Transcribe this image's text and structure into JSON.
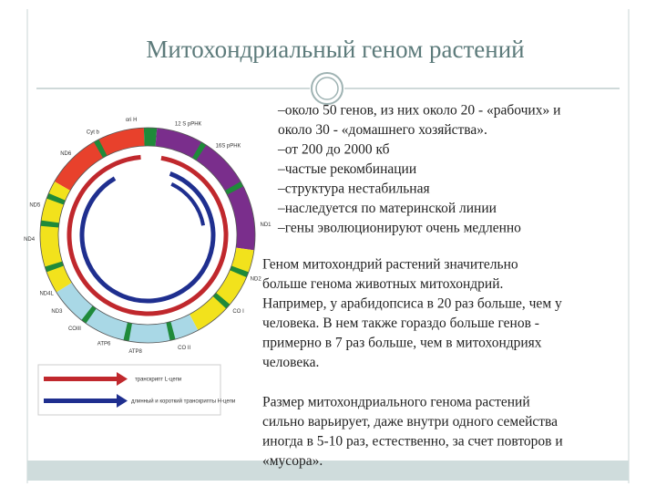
{
  "header": {
    "title": "Митохондриальный геном растений"
  },
  "bullets": [
    "–около 50 генов, из них около 20 - «рабочих» и",
    "около 30 - «домашнего хозяйства».",
    "–от 200 до 2000 кб",
    "–частые рекомбинации",
    "–структура нестабильная",
    "–наследуется по материнской линии",
    "–гены эволюционируют очень медленно"
  ],
  "paragraphs": [
    [
      "Геном митохондрий растений значительно",
      "больше генома животных митохондрий.",
      "Например, у арабидопсиса в 20 раз больше, чем у",
      "человека. В нем также гораздо больше генов -",
      "примерно в 7 раз больше, чем в митохондриях",
      "человека."
    ],
    [
      "Размер митохондриального генома растений",
      "сильно варьирует, даже внутри одного семейства",
      "иногда в 5-10 раз, естественно, за счет повторов и",
      "«мусора»."
    ]
  ],
  "diagram": {
    "labels": [
      "Cyt b",
      "ori H",
      "12 S рРНК",
      "16S рРНК",
      "ND6",
      "ND5",
      "ND1",
      "ND4",
      "ND2",
      "ND4L",
      "ND3",
      "CO I",
      "COIII",
      "ATP6",
      "ATP8",
      "CO II"
    ],
    "legend": [
      "транскрипт L-цепи",
      "длинный и короткий транскрипты H-цепи"
    ]
  }
}
